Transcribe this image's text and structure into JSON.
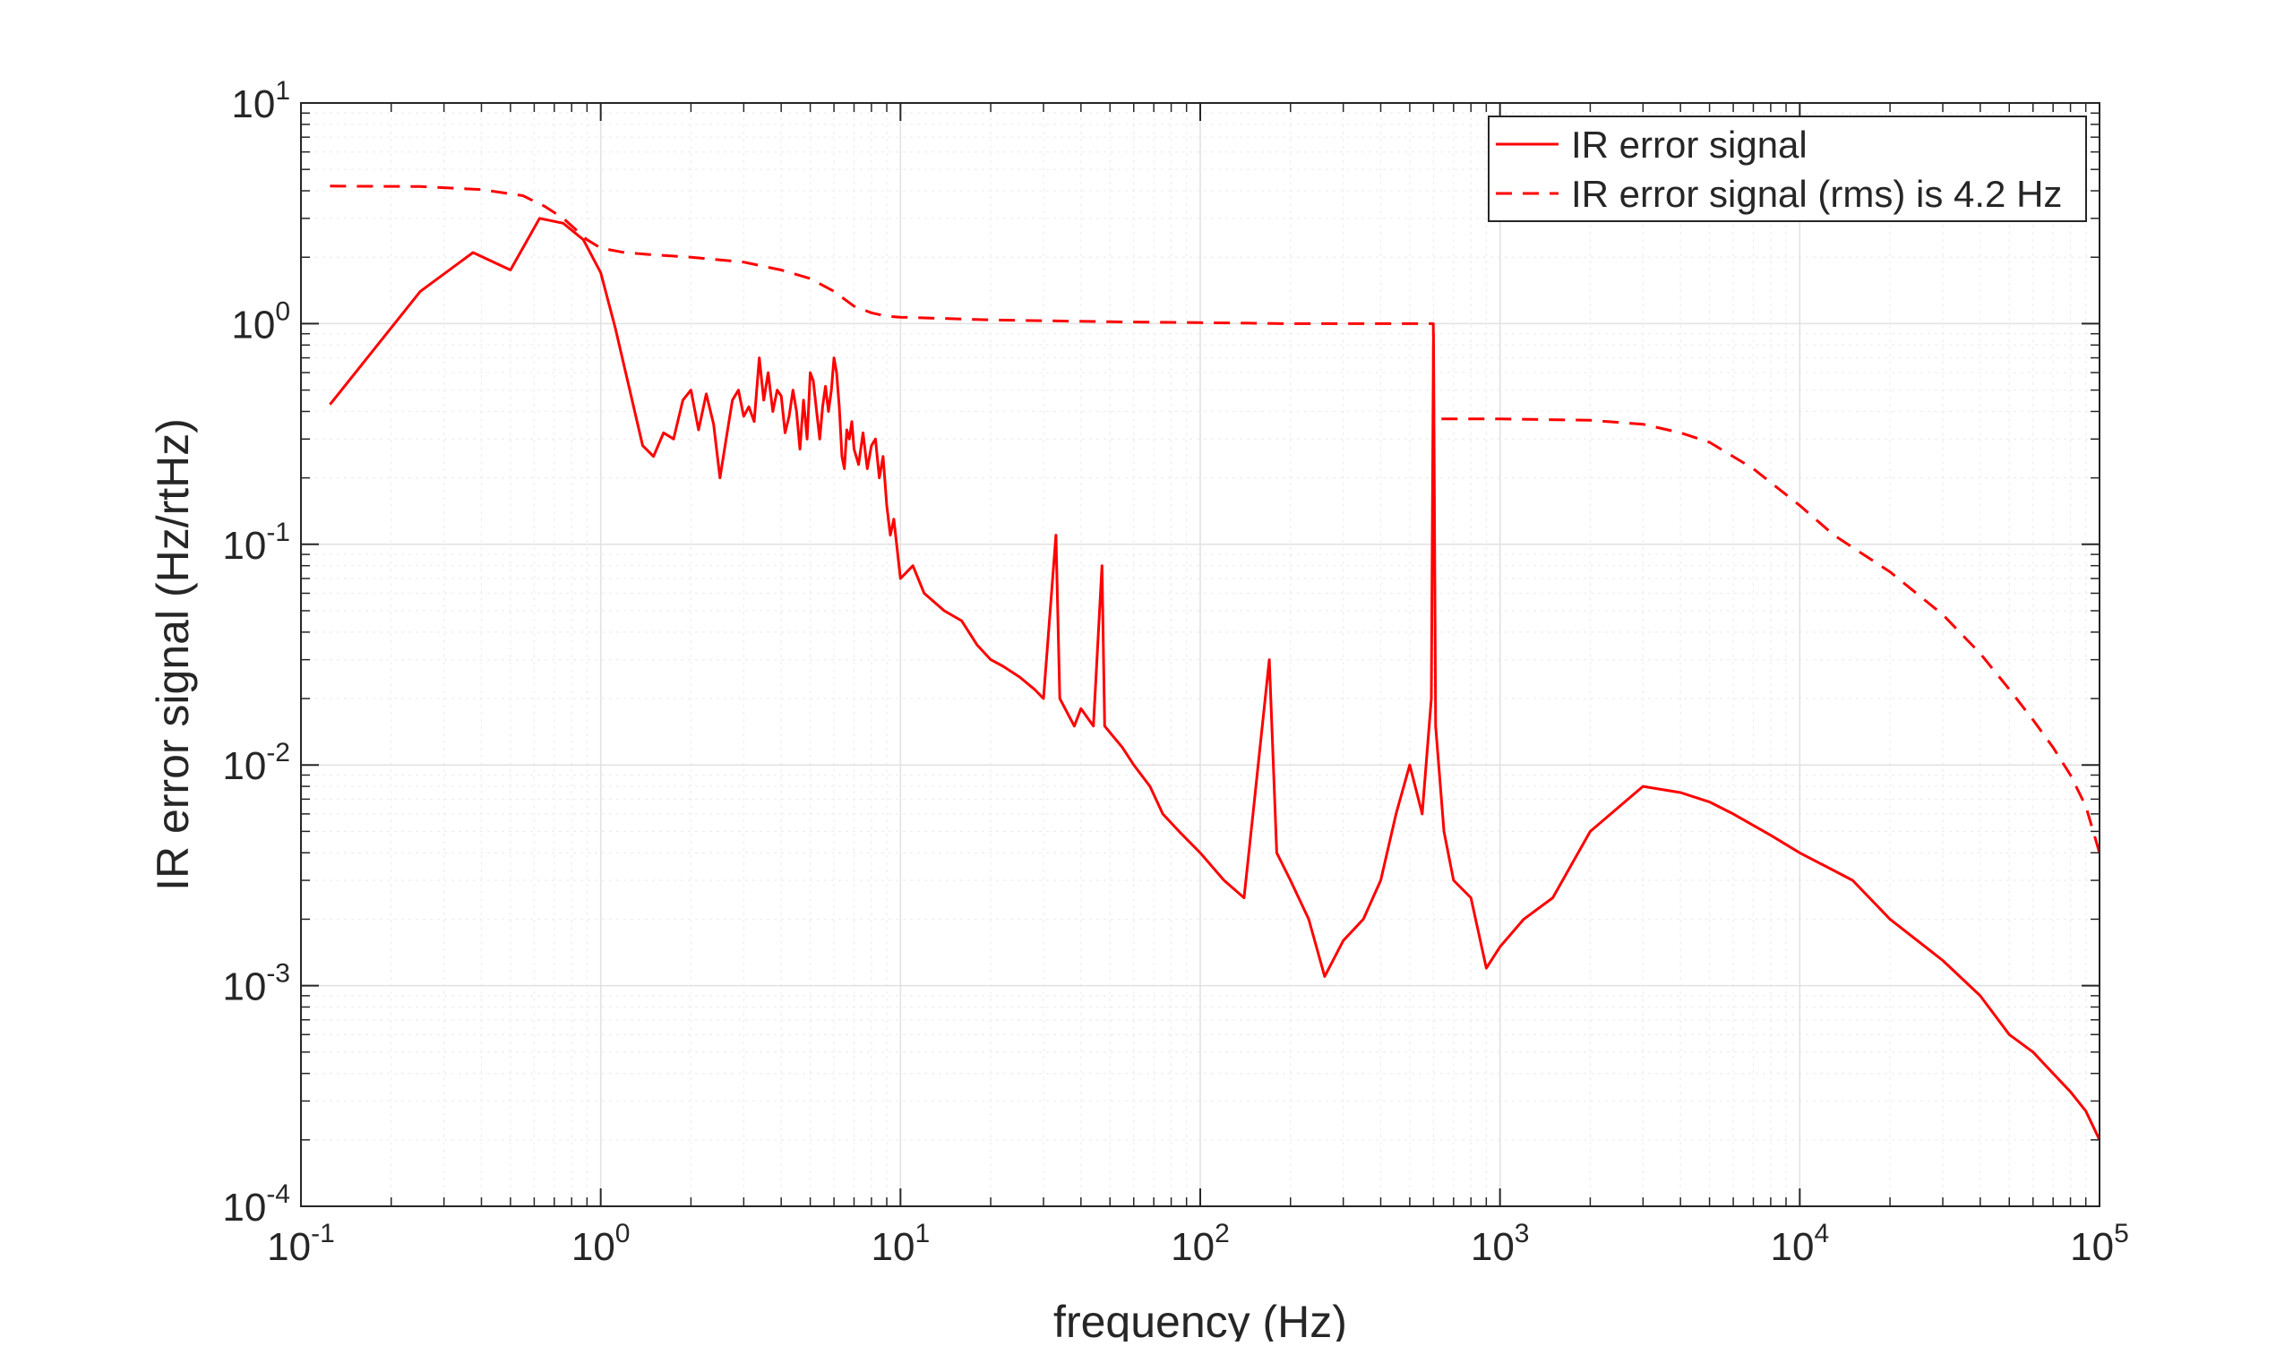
{
  "colors": {
    "series": "#ff0000",
    "axes": "#262626",
    "grid": "#e1e1e1",
    "grid_minor": "#eeeeee",
    "background": "#ffffff"
  },
  "chart_data": {
    "type": "line",
    "title": "",
    "xlabel": "frequency (Hz)",
    "ylabel": "IR error signal (Hz/rtHz)",
    "xscale": "log",
    "yscale": "log",
    "xlim": [
      0.1,
      100000
    ],
    "ylim": [
      0.0001,
      10
    ],
    "grid": true,
    "minor_grid": true,
    "legend_position": "top-right",
    "x_ticks": [
      {
        "base": "10",
        "exp": "-1"
      },
      {
        "base": "10",
        "exp": "0"
      },
      {
        "base": "10",
        "exp": "1"
      },
      {
        "base": "10",
        "exp": "2"
      },
      {
        "base": "10",
        "exp": "3"
      },
      {
        "base": "10",
        "exp": "4"
      },
      {
        "base": "10",
        "exp": "5"
      }
    ],
    "y_ticks": [
      {
        "base": "10",
        "exp": "-4"
      },
      {
        "base": "10",
        "exp": "-3"
      },
      {
        "base": "10",
        "exp": "-2"
      },
      {
        "base": "10",
        "exp": "-1"
      },
      {
        "base": "10",
        "exp": "0"
      },
      {
        "base": "10",
        "exp": "1"
      }
    ],
    "series": [
      {
        "name": "IR error signal",
        "style": "solid",
        "color": "#ff0000",
        "points": [
          [
            0.125,
            0.43
          ],
          [
            0.25,
            1.4
          ],
          [
            0.375,
            2.1
          ],
          [
            0.5,
            1.75
          ],
          [
            0.625,
            3.0
          ],
          [
            0.75,
            2.85
          ],
          [
            0.875,
            2.4
          ],
          [
            1.0,
            1.7
          ],
          [
            1.12,
            0.95
          ],
          [
            1.25,
            0.5
          ],
          [
            1.38,
            0.28
          ],
          [
            1.5,
            0.25
          ],
          [
            1.62,
            0.32
          ],
          [
            1.75,
            0.3
          ],
          [
            1.88,
            0.45
          ],
          [
            2.0,
            0.5
          ],
          [
            2.12,
            0.33
          ],
          [
            2.25,
            0.48
          ],
          [
            2.38,
            0.35
          ],
          [
            2.5,
            0.2
          ],
          [
            2.62,
            0.3
          ],
          [
            2.75,
            0.45
          ],
          [
            2.88,
            0.5
          ],
          [
            3.0,
            0.38
          ],
          [
            3.12,
            0.42
          ],
          [
            3.25,
            0.36
          ],
          [
            3.38,
            0.7
          ],
          [
            3.5,
            0.45
          ],
          [
            3.62,
            0.6
          ],
          [
            3.75,
            0.4
          ],
          [
            3.88,
            0.5
          ],
          [
            4.0,
            0.47
          ],
          [
            4.12,
            0.32
          ],
          [
            4.25,
            0.38
          ],
          [
            4.38,
            0.5
          ],
          [
            4.5,
            0.4
          ],
          [
            4.62,
            0.27
          ],
          [
            4.75,
            0.45
          ],
          [
            4.88,
            0.3
          ],
          [
            5.0,
            0.6
          ],
          [
            5.12,
            0.55
          ],
          [
            5.25,
            0.4
          ],
          [
            5.38,
            0.3
          ],
          [
            5.5,
            0.42
          ],
          [
            5.62,
            0.52
          ],
          [
            5.75,
            0.4
          ],
          [
            5.88,
            0.5
          ],
          [
            6.0,
            0.7
          ],
          [
            6.12,
            0.6
          ],
          [
            6.25,
            0.42
          ],
          [
            6.38,
            0.25
          ],
          [
            6.5,
            0.22
          ],
          [
            6.62,
            0.33
          ],
          [
            6.75,
            0.3
          ],
          [
            6.88,
            0.36
          ],
          [
            7.0,
            0.27
          ],
          [
            7.25,
            0.23
          ],
          [
            7.5,
            0.32
          ],
          [
            7.75,
            0.22
          ],
          [
            8.0,
            0.28
          ],
          [
            8.25,
            0.3
          ],
          [
            8.5,
            0.2
          ],
          [
            8.75,
            0.25
          ],
          [
            9.0,
            0.15
          ],
          [
            9.25,
            0.11
          ],
          [
            9.5,
            0.13
          ],
          [
            10.0,
            0.07
          ],
          [
            11,
            0.08
          ],
          [
            12,
            0.06
          ],
          [
            14,
            0.05
          ],
          [
            16,
            0.045
          ],
          [
            18,
            0.035
          ],
          [
            20,
            0.03
          ],
          [
            22,
            0.028
          ],
          [
            25,
            0.025
          ],
          [
            28,
            0.022
          ],
          [
            30,
            0.02
          ],
          [
            33,
            0.11
          ],
          [
            34,
            0.02
          ],
          [
            38,
            0.015
          ],
          [
            40,
            0.018
          ],
          [
            44,
            0.015
          ],
          [
            47,
            0.08
          ],
          [
            48,
            0.015
          ],
          [
            55,
            0.012
          ],
          [
            60,
            0.01
          ],
          [
            68,
            0.008
          ],
          [
            75,
            0.006
          ],
          [
            85,
            0.005
          ],
          [
            100,
            0.004
          ],
          [
            120,
            0.003
          ],
          [
            140,
            0.0025
          ],
          [
            150,
            0.006
          ],
          [
            170,
            0.03
          ],
          [
            180,
            0.004
          ],
          [
            200,
            0.003
          ],
          [
            230,
            0.002
          ],
          [
            260,
            0.0011
          ],
          [
            300,
            0.0016
          ],
          [
            350,
            0.002
          ],
          [
            400,
            0.003
          ],
          [
            450,
            0.006
          ],
          [
            500,
            0.01
          ],
          [
            550,
            0.006
          ],
          [
            590,
            0.02
          ],
          [
            600,
            0.9
          ],
          [
            610,
            0.015
          ],
          [
            650,
            0.005
          ],
          [
            700,
            0.003
          ],
          [
            800,
            0.0025
          ],
          [
            900,
            0.0012
          ],
          [
            1000,
            0.0015
          ],
          [
            1200,
            0.002
          ],
          [
            1500,
            0.0025
          ],
          [
            2000,
            0.005
          ],
          [
            3000,
            0.008
          ],
          [
            4000,
            0.0075
          ],
          [
            5000,
            0.0068
          ],
          [
            6000,
            0.006
          ],
          [
            8000,
            0.0048
          ],
          [
            10000,
            0.004
          ],
          [
            15000,
            0.003
          ],
          [
            20000,
            0.002
          ],
          [
            30000,
            0.0013
          ],
          [
            40000,
            0.0009
          ],
          [
            50000,
            0.0006
          ],
          [
            60000,
            0.0005
          ],
          [
            70000,
            0.0004
          ],
          [
            80000,
            0.00033
          ],
          [
            90000,
            0.00027
          ],
          [
            100000,
            0.0002
          ]
        ]
      },
      {
        "name": "IR error signal (rms) is 4.2 Hz",
        "style": "dashed",
        "color": "#ff0000",
        "points": [
          [
            0.125,
            4.2
          ],
          [
            0.25,
            4.18
          ],
          [
            0.4,
            4.05
          ],
          [
            0.55,
            3.8
          ],
          [
            0.65,
            3.4
          ],
          [
            0.75,
            3.0
          ],
          [
            0.9,
            2.4
          ],
          [
            1.0,
            2.2
          ],
          [
            1.2,
            2.1
          ],
          [
            1.5,
            2.05
          ],
          [
            2.0,
            2.0
          ],
          [
            3.0,
            1.9
          ],
          [
            4.0,
            1.75
          ],
          [
            5.0,
            1.6
          ],
          [
            6.0,
            1.4
          ],
          [
            7.0,
            1.2
          ],
          [
            8.0,
            1.12
          ],
          [
            9.0,
            1.08
          ],
          [
            10.0,
            1.07
          ],
          [
            20,
            1.04
          ],
          [
            50,
            1.02
          ],
          [
            100,
            1.01
          ],
          [
            200,
            1.0
          ],
          [
            400,
            1.0
          ],
          [
            599,
            1.0
          ],
          [
            600,
            0.75
          ],
          [
            601,
            0.37
          ],
          [
            1000,
            0.37
          ],
          [
            2000,
            0.365
          ],
          [
            3000,
            0.35
          ],
          [
            4000,
            0.32
          ],
          [
            5000,
            0.29
          ],
          [
            7000,
            0.22
          ],
          [
            10000,
            0.15
          ],
          [
            13000,
            0.11
          ],
          [
            20000,
            0.075
          ],
          [
            30000,
            0.048
          ],
          [
            40000,
            0.032
          ],
          [
            50000,
            0.022
          ],
          [
            60000,
            0.016
          ],
          [
            70000,
            0.012
          ],
          [
            80000,
            0.009
          ],
          [
            90000,
            0.0065
          ],
          [
            100000,
            0.004
          ]
        ]
      }
    ]
  }
}
